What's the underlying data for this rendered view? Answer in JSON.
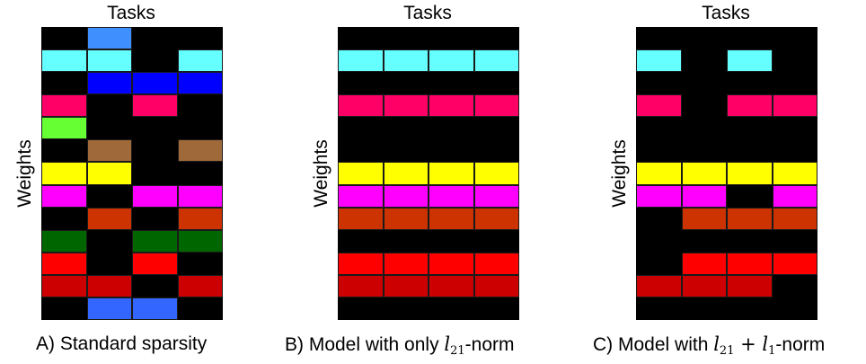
{
  "colors": {
    "black": "#000000",
    "lightblue": "#3f8fff",
    "cyan": "#66ffff",
    "blue": "#0000ff",
    "crimson": "#ff0066",
    "green": "#66ff33",
    "brown": "#a0693a",
    "yellow": "#ffff00",
    "magenta": "#ff00ff",
    "orange": "#cc3300",
    "darkgreen": "#006600",
    "red": "#ff0000",
    "darkred": "#cc0000",
    "royalblue": "#3366ff"
  },
  "panels": [
    {
      "id": "a",
      "tasks_label": "Tasks",
      "weights_label": "Weights",
      "caption_prefix": "A) Standard sparsity",
      "caption_math": "",
      "caption_math_sub": "",
      "caption_math2": "",
      "caption_math2_sub": "",
      "caption_suffix": "",
      "rows": [
        [
          "black",
          "lightblue",
          "black",
          "black"
        ],
        [
          "cyan",
          "cyan",
          "black",
          "cyan"
        ],
        [
          "black",
          "blue",
          "blue",
          "blue"
        ],
        [
          "crimson",
          "black",
          "crimson",
          "black"
        ],
        [
          "green",
          "black",
          "black",
          "black"
        ],
        [
          "black",
          "brown",
          "black",
          "brown"
        ],
        [
          "yellow",
          "yellow",
          "black",
          "black"
        ],
        [
          "magenta",
          "black",
          "magenta",
          "magenta"
        ],
        [
          "black",
          "orange",
          "black",
          "orange"
        ],
        [
          "darkgreen",
          "black",
          "darkgreen",
          "darkgreen"
        ],
        [
          "red",
          "black",
          "red",
          "black"
        ],
        [
          "darkred",
          "darkred",
          "black",
          "darkred"
        ],
        [
          "black",
          "royalblue",
          "royalblue",
          "black"
        ]
      ]
    },
    {
      "id": "b",
      "tasks_label": "Tasks",
      "weights_label": "Weights",
      "caption_prefix": "B) Model with only ",
      "caption_math": "l",
      "caption_math_sub": "21",
      "caption_math2": "",
      "caption_math2_sub": "",
      "caption_suffix": "-norm",
      "rows": [
        [
          "black",
          "black",
          "black",
          "black"
        ],
        [
          "cyan",
          "cyan",
          "cyan",
          "cyan"
        ],
        [
          "black",
          "black",
          "black",
          "black"
        ],
        [
          "crimson",
          "crimson",
          "crimson",
          "crimson"
        ],
        [
          "black",
          "black",
          "black",
          "black"
        ],
        [
          "black",
          "black",
          "black",
          "black"
        ],
        [
          "yellow",
          "yellow",
          "yellow",
          "yellow"
        ],
        [
          "magenta",
          "magenta",
          "magenta",
          "magenta"
        ],
        [
          "orange",
          "orange",
          "orange",
          "orange"
        ],
        [
          "black",
          "black",
          "black",
          "black"
        ],
        [
          "red",
          "red",
          "red",
          "red"
        ],
        [
          "darkred",
          "darkred",
          "darkred",
          "darkred"
        ],
        [
          "black",
          "black",
          "black",
          "black"
        ]
      ]
    },
    {
      "id": "c",
      "tasks_label": "Tasks",
      "weights_label": "Weights",
      "caption_prefix": "C) Model with ",
      "caption_math": "l",
      "caption_math_sub": "21",
      "caption_math2": " + l",
      "caption_math2_sub": "1",
      "caption_suffix": "-norm",
      "rows": [
        [
          "black",
          "black",
          "black",
          "black"
        ],
        [
          "cyan",
          "black",
          "cyan",
          "black"
        ],
        [
          "black",
          "black",
          "black",
          "black"
        ],
        [
          "crimson",
          "black",
          "crimson",
          "crimson"
        ],
        [
          "black",
          "black",
          "black",
          "black"
        ],
        [
          "black",
          "black",
          "black",
          "black"
        ],
        [
          "yellow",
          "yellow",
          "yellow",
          "yellow"
        ],
        [
          "magenta",
          "magenta",
          "black",
          "magenta"
        ],
        [
          "black",
          "orange",
          "orange",
          "orange"
        ],
        [
          "black",
          "black",
          "black",
          "black"
        ],
        [
          "black",
          "red",
          "red",
          "red"
        ],
        [
          "darkred",
          "darkred",
          "darkred",
          "black"
        ],
        [
          "black",
          "black",
          "black",
          "black"
        ]
      ]
    }
  ]
}
